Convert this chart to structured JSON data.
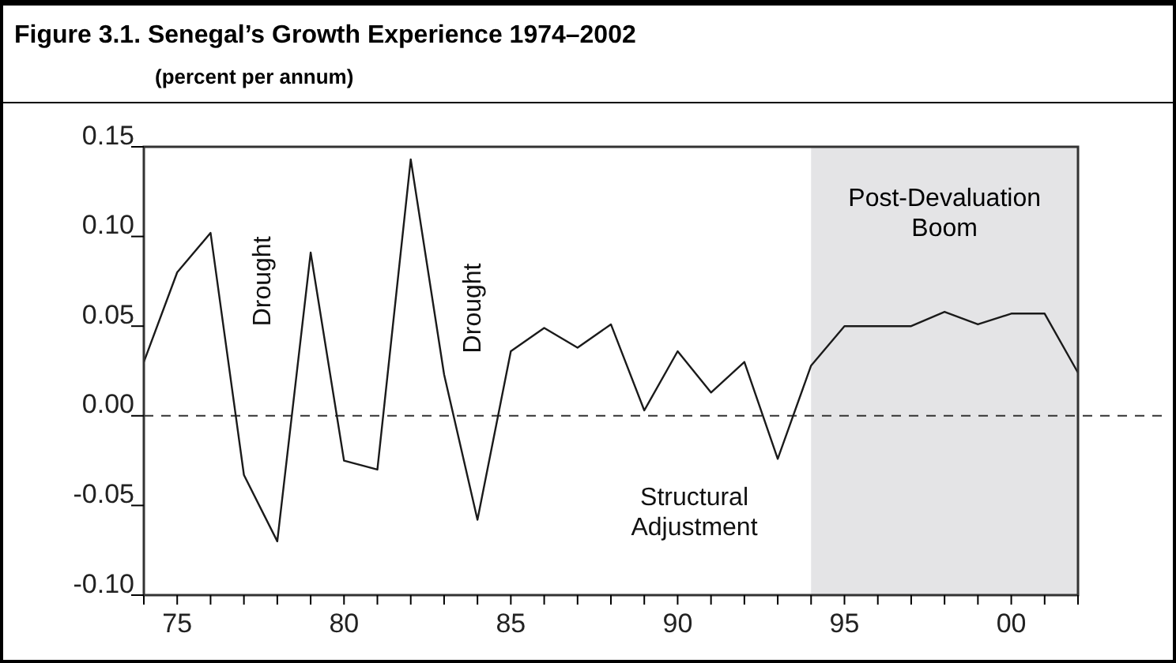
{
  "chart_data": {
    "type": "line",
    "title": "Figure 3.1.  Senegal’s Growth Experience 1974–2002",
    "subtitle": "(percent per annum)",
    "x": [
      1974,
      1975,
      1976,
      1977,
      1978,
      1979,
      1980,
      1981,
      1982,
      1983,
      1984,
      1985,
      1986,
      1987,
      1988,
      1989,
      1990,
      1991,
      1992,
      1993,
      1994,
      1995,
      1996,
      1997,
      1998,
      1999,
      2000,
      2001,
      2002
    ],
    "series": [
      {
        "color": "#1a1a1a",
        "values": [
          0.03,
          0.08,
          0.102,
          -0.033,
          -0.07,
          0.091,
          -0.025,
          -0.03,
          0.143,
          0.023,
          -0.058,
          0.036,
          0.049,
          0.038,
          0.051,
          0.003,
          0.036,
          0.013,
          0.03,
          -0.024,
          0.028,
          0.05,
          0.05,
          0.05,
          0.058,
          0.051,
          0.057,
          0.057,
          0.024
        ]
      }
    ],
    "xlim": [
      1974,
      2002
    ],
    "xticks": [
      {
        "value": 1974,
        "label": null
      },
      {
        "value": 1975,
        "label": "75"
      },
      {
        "value": 1976,
        "label": null
      },
      {
        "value": 1977,
        "label": null
      },
      {
        "value": 1978,
        "label": null
      },
      {
        "value": 1979,
        "label": null
      },
      {
        "value": 1980,
        "label": "80"
      },
      {
        "value": 1981,
        "label": null
      },
      {
        "value": 1982,
        "label": null
      },
      {
        "value": 1983,
        "label": null
      },
      {
        "value": 1984,
        "label": null
      },
      {
        "value": 1985,
        "label": "85"
      },
      {
        "value": 1986,
        "label": null
      },
      {
        "value": 1987,
        "label": null
      },
      {
        "value": 1988,
        "label": null
      },
      {
        "value": 1989,
        "label": null
      },
      {
        "value": 1990,
        "label": "90"
      },
      {
        "value": 1991,
        "label": null
      },
      {
        "value": 1992,
        "label": null
      },
      {
        "value": 1993,
        "label": null
      },
      {
        "value": 1994,
        "label": null
      },
      {
        "value": 1995,
        "label": "95"
      },
      {
        "value": 1996,
        "label": null
      },
      {
        "value": 1997,
        "label": null
      },
      {
        "value": 1998,
        "label": null
      },
      {
        "value": 1999,
        "label": null
      },
      {
        "value": 2000,
        "label": "00"
      },
      {
        "value": 2001,
        "label": null
      },
      {
        "value": 2002,
        "label": null
      }
    ],
    "ylim": [
      -0.1,
      0.15
    ],
    "yticks": [
      {
        "value": -0.1,
        "label": "-0.10"
      },
      {
        "value": -0.05,
        "label": "-0.05"
      },
      {
        "value": 0,
        "label": "0.00"
      },
      {
        "value": 0.05,
        "label": "0.05"
      },
      {
        "value": 0.1,
        "label": "0.10"
      },
      {
        "value": 0.15,
        "label": "0.15"
      }
    ],
    "ref_lines": [
      {
        "axis": "y",
        "value": 0,
        "line_style": "dashed",
        "color": "#333333"
      }
    ],
    "bands": [
      {
        "axis": "x",
        "from": 1994,
        "to": 2002,
        "label": "Post-Devaluation Boom",
        "color": "#e4e4e6"
      }
    ],
    "annotations": [
      "Drought",
      "Drought",
      "Structural Adjustment"
    ],
    "line_style": "solid",
    "marker": "none"
  }
}
